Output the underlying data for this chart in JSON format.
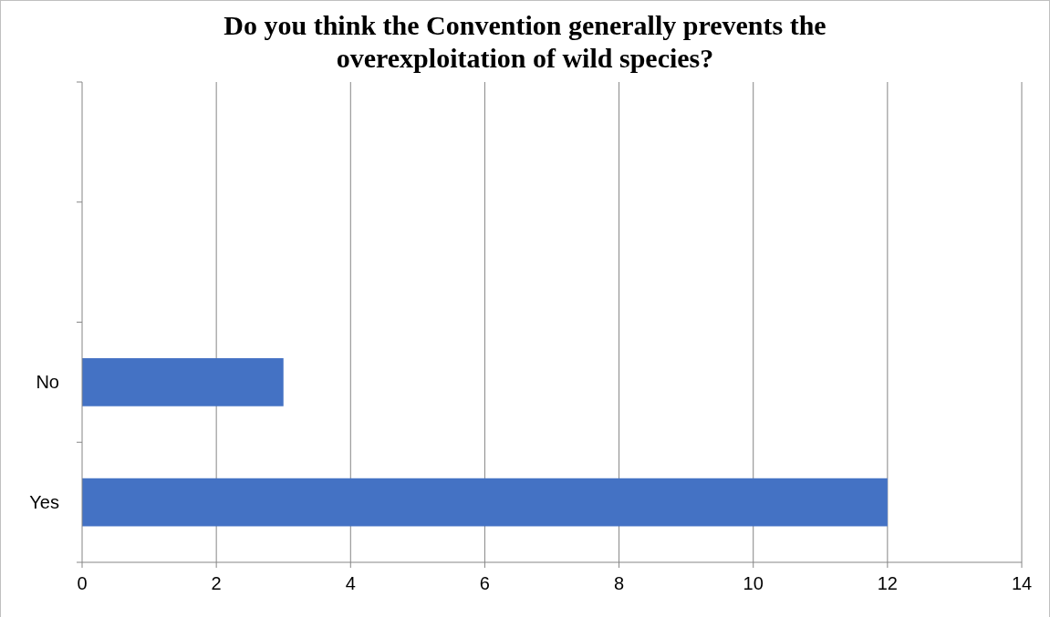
{
  "chart_data": {
    "type": "bar",
    "orientation": "horizontal",
    "title": "Do you think the Convention generally prevents the overexploitation of wild species?",
    "categories": [
      null,
      null,
      "No",
      "Yes"
    ],
    "values": [
      null,
      null,
      3,
      12
    ],
    "color": "#4472c4",
    "xlim": [
      0,
      14
    ],
    "xticks": [
      0,
      2,
      4,
      6,
      8,
      10,
      12,
      14
    ],
    "grid": "x"
  }
}
